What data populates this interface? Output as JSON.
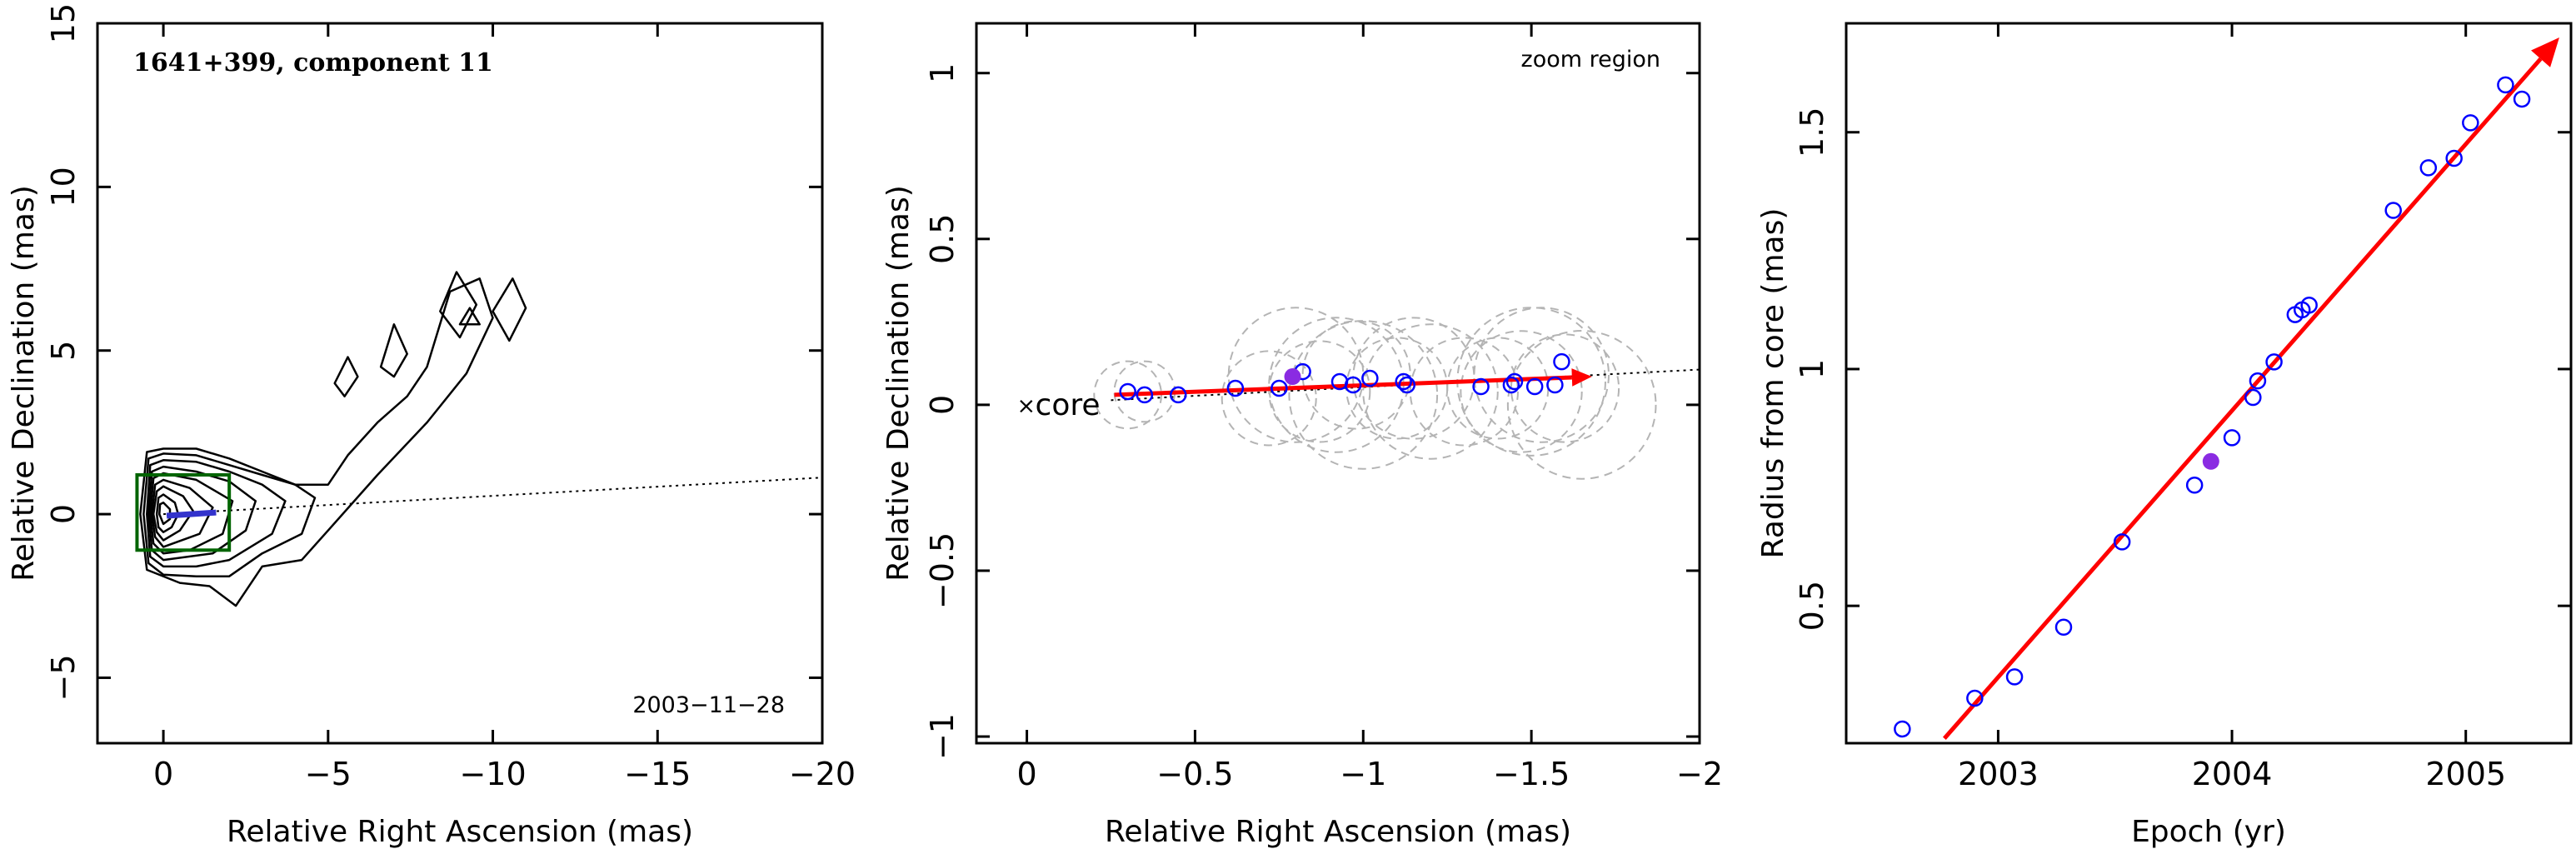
{
  "chart_data": [
    {
      "type": "contour",
      "title": "1641+399, component 11",
      "date_label": "2003−11−28",
      "xlabel": "Relative Right Ascension (mas)",
      "ylabel": "Relative Declination (mas)",
      "xlim": [
        2,
        -20
      ],
      "ylim": [
        -7,
        15
      ],
      "xticks": [
        0,
        -5,
        -10,
        -15,
        -20
      ],
      "xtick_labels": [
        "0",
        "−5",
        "−10",
        "−15",
        "−20"
      ],
      "yticks": [
        -5,
        0,
        5,
        10,
        15
      ],
      "ytick_labels": [
        "−5",
        "0",
        "5",
        "10",
        "15"
      ],
      "jet_axis_angle_deg": 3.2,
      "zoom_box": {
        "x": [
          0.8,
          -2.0
        ],
        "y": [
          -1.1,
          1.2
        ]
      },
      "component_track": {
        "x": [
          -0.1,
          -1.6
        ],
        "y": [
          -0.05,
          0.05
        ]
      },
      "contours": [
        {
          "level": 1,
          "points": [
            [
              0.5,
              1.9
            ],
            [
              0,
              2.0
            ],
            [
              -1,
              2.0
            ],
            [
              -2,
              1.7
            ],
            [
              -3,
              1.3
            ],
            [
              -4,
              0.9
            ],
            [
              -5,
              0.9
            ],
            [
              -5.6,
              1.8
            ],
            [
              -6.5,
              2.8
            ],
            [
              -7.4,
              3.6
            ],
            [
              -8,
              4.5
            ],
            [
              -8.7,
              6.8
            ],
            [
              -9.6,
              7.2
            ],
            [
              -10,
              6.0
            ],
            [
              -9.2,
              4.3
            ],
            [
              -8,
              2.8
            ],
            [
              -6.5,
              1.2
            ],
            [
              -5,
              -0.5
            ],
            [
              -4.2,
              -1.4
            ],
            [
              -3,
              -1.6
            ],
            [
              -2.2,
              -2.8
            ],
            [
              -1.4,
              -2.2
            ],
            [
              -0.5,
              -2.1
            ],
            [
              0.5,
              -1.7
            ],
            [
              0.7,
              0
            ]
          ]
        },
        {
          "level": 2,
          "points": [
            [
              0.45,
              1.7
            ],
            [
              0,
              1.85
            ],
            [
              -1,
              1.8
            ],
            [
              -2,
              1.5
            ],
            [
              -3,
              1.2
            ],
            [
              -4,
              0.9
            ],
            [
              -4.6,
              0.5
            ],
            [
              -4.2,
              -0.6
            ],
            [
              -3,
              -1.2
            ],
            [
              -2,
              -1.9
            ],
            [
              -1,
              -1.9
            ],
            [
              0,
              -1.85
            ],
            [
              0.45,
              -1.5
            ],
            [
              0.6,
              0
            ]
          ]
        },
        {
          "level": 3,
          "points": [
            [
              0.4,
              1.5
            ],
            [
              0,
              1.65
            ],
            [
              -1,
              1.6
            ],
            [
              -2,
              1.3
            ],
            [
              -3,
              0.9
            ],
            [
              -3.7,
              0.4
            ],
            [
              -3.3,
              -0.6
            ],
            [
              -2,
              -1.4
            ],
            [
              -1,
              -1.6
            ],
            [
              0,
              -1.6
            ],
            [
              0.4,
              -1.3
            ],
            [
              0.5,
              0
            ]
          ]
        },
        {
          "level": 4,
          "points": [
            [
              0.35,
              1.3
            ],
            [
              0,
              1.45
            ],
            [
              -1,
              1.3
            ],
            [
              -2,
              1.0
            ],
            [
              -2.8,
              0.4
            ],
            [
              -2.5,
              -0.5
            ],
            [
              -1.5,
              -1.2
            ],
            [
              0,
              -1.4
            ],
            [
              0.35,
              -1.1
            ],
            [
              0.45,
              0
            ]
          ]
        },
        {
          "level": 5,
          "points": [
            [
              0.3,
              1.1
            ],
            [
              0,
              1.25
            ],
            [
              -1,
              1.05
            ],
            [
              -2.1,
              0.4
            ],
            [
              -1.8,
              -0.6
            ],
            [
              -0.8,
              -1.1
            ],
            [
              0,
              -1.2
            ],
            [
              0.3,
              -0.9
            ],
            [
              0.4,
              0
            ]
          ]
        },
        {
          "level": 6,
          "points": [
            [
              0.25,
              0.9
            ],
            [
              0,
              1.05
            ],
            [
              -0.8,
              0.8
            ],
            [
              -1.5,
              0.2
            ],
            [
              -1.1,
              -0.6
            ],
            [
              0,
              -1.0
            ],
            [
              0.25,
              -0.7
            ],
            [
              0.35,
              0
            ]
          ]
        },
        {
          "level": 7,
          "points": [
            [
              0.2,
              0.7
            ],
            [
              0,
              0.85
            ],
            [
              -0.6,
              0.55
            ],
            [
              -0.9,
              0.1
            ],
            [
              -0.5,
              -0.5
            ],
            [
              0,
              -0.8
            ],
            [
              0.2,
              -0.55
            ],
            [
              0.3,
              0
            ]
          ]
        },
        {
          "level": 8,
          "points": [
            [
              0.15,
              0.5
            ],
            [
              0,
              0.6
            ],
            [
              -0.35,
              0.35
            ],
            [
              -0.45,
              0
            ],
            [
              -0.25,
              -0.4
            ],
            [
              0,
              -0.55
            ],
            [
              0.15,
              -0.4
            ],
            [
              0.2,
              0
            ]
          ]
        },
        {
          "level": 9,
          "points": [
            [
              0.1,
              0.3
            ],
            [
              0,
              0.35
            ],
            [
              -0.2,
              0.15
            ],
            [
              -0.2,
              -0.15
            ],
            [
              0,
              -0.3
            ],
            [
              0.12,
              0
            ]
          ]
        },
        {
          "level": 10,
          "points": [
            [
              -5.2,
              4.0
            ],
            [
              -5.6,
              4.8
            ],
            [
              -5.9,
              4.2
            ],
            [
              -5.5,
              3.6
            ]
          ]
        },
        {
          "level": 11,
          "points": [
            [
              -6.6,
              4.5
            ],
            [
              -7.0,
              5.8
            ],
            [
              -7.4,
              4.9
            ],
            [
              -7.0,
              4.2
            ]
          ]
        },
        {
          "level": 12,
          "points": [
            [
              -8.4,
              6.2
            ],
            [
              -8.9,
              7.4
            ],
            [
              -9.5,
              6.4
            ],
            [
              -9.0,
              5.4
            ]
          ]
        },
        {
          "level": 13,
          "points": [
            [
              -10.0,
              6.2
            ],
            [
              -10.6,
              7.2
            ],
            [
              -11.0,
              6.3
            ],
            [
              -10.5,
              5.3
            ]
          ]
        },
        {
          "level": 14,
          "points": [
            [
              -9.0,
              5.8
            ],
            [
              -9.3,
              6.3
            ],
            [
              -9.6,
              5.8
            ]
          ]
        }
      ]
    },
    {
      "type": "scatter",
      "annotation": "zoom region",
      "core_label": "core",
      "xlabel": "Relative Right Ascension (mas)",
      "ylabel": "Relative Declination (mas)",
      "xlim": [
        0.15,
        -2.0
      ],
      "ylim": [
        -1.02,
        1.15
      ],
      "xticks": [
        0,
        -0.5,
        -1,
        -1.5,
        -2
      ],
      "xtick_labels": [
        "0",
        "−0.5",
        "−1",
        "−1.5",
        "−2"
      ],
      "yticks": [
        -1,
        -0.5,
        0,
        0.5,
        1
      ],
      "ytick_labels": [
        "−1",
        "−0.5",
        "0",
        "0.5",
        "1"
      ],
      "highlight": {
        "x": -0.79,
        "y": 0.085
      },
      "x": [
        -0.3,
        -0.35,
        -0.45,
        -0.62,
        -0.75,
        -0.82,
        -0.93,
        -0.97,
        -1.02,
        -1.12,
        -1.13,
        -1.35,
        -1.44,
        -1.45,
        -1.51,
        -1.57,
        -1.59
      ],
      "y": [
        0.04,
        0.03,
        0.03,
        0.05,
        0.05,
        0.1,
        0.07,
        0.06,
        0.08,
        0.07,
        0.06,
        0.055,
        0.06,
        0.07,
        0.055,
        0.06,
        0.13
      ],
      "circles": {
        "x": [
          -0.3,
          -0.35,
          -0.72,
          -0.8,
          -0.87,
          -0.92,
          -0.98,
          -1.0,
          -1.1,
          -1.15,
          -1.2,
          -1.3,
          -1.4,
          -1.47,
          -1.5,
          -1.53,
          -1.6,
          -1.65
        ],
        "y": [
          0.03,
          0.04,
          0.02,
          0.09,
          0.04,
          0.06,
          0.09,
          0.03,
          0.05,
          0.08,
          0.04,
          0.04,
          0.05,
          0.04,
          0.07,
          0.09,
          0.05,
          0.0
        ],
        "r": [
          0.1,
          0.09,
          0.14,
          0.2,
          0.15,
          0.2,
          0.16,
          0.22,
          0.15,
          0.18,
          0.2,
          0.16,
          0.15,
          0.18,
          0.22,
          0.2,
          0.16,
          0.22
        ]
      },
      "arrow": {
        "x": [
          -0.26,
          -1.68
        ],
        "y": [
          0.03,
          0.085
        ]
      },
      "jet_axis_angle_deg": 3.2
    },
    {
      "type": "scatter",
      "xlabel": "Epoch (yr)",
      "ylabel": "Radius from core (mas)",
      "xlim": [
        2002.35,
        2005.45
      ],
      "ylim": [
        0.21,
        1.73
      ],
      "xticks": [
        2003,
        2004,
        2005
      ],
      "xtick_labels": [
        "2003",
        "2004",
        "2005"
      ],
      "yticks": [
        0.5,
        1,
        1.5
      ],
      "ytick_labels": [
        "0.5",
        "1",
        "1.5"
      ],
      "highlight": {
        "x": 2003.91,
        "y": 0.805
      },
      "x": [
        2002.59,
        2002.9,
        2003.07,
        2003.28,
        2003.53,
        2003.84,
        2004.0,
        2004.09,
        2004.11,
        2004.18,
        2004.27,
        2004.3,
        2004.33,
        2004.69,
        2004.84,
        2004.95,
        2005.02,
        2005.17,
        2005.24
      ],
      "y": [
        0.24,
        0.305,
        0.35,
        0.455,
        0.635,
        0.755,
        0.855,
        0.94,
        0.975,
        1.015,
        1.115,
        1.125,
        1.135,
        1.335,
        1.425,
        1.445,
        1.52,
        1.6,
        1.57
      ],
      "fit_arrow": {
        "x": [
          2002.77,
          2005.4
        ],
        "y": [
          0.22,
          1.7
        ]
      }
    }
  ],
  "colors": {
    "arrow": "#ff0000",
    "points": "#0000ff",
    "highlight": "#8a2be2",
    "zoom_box": "#006400",
    "circles": "#b4b4b4"
  }
}
